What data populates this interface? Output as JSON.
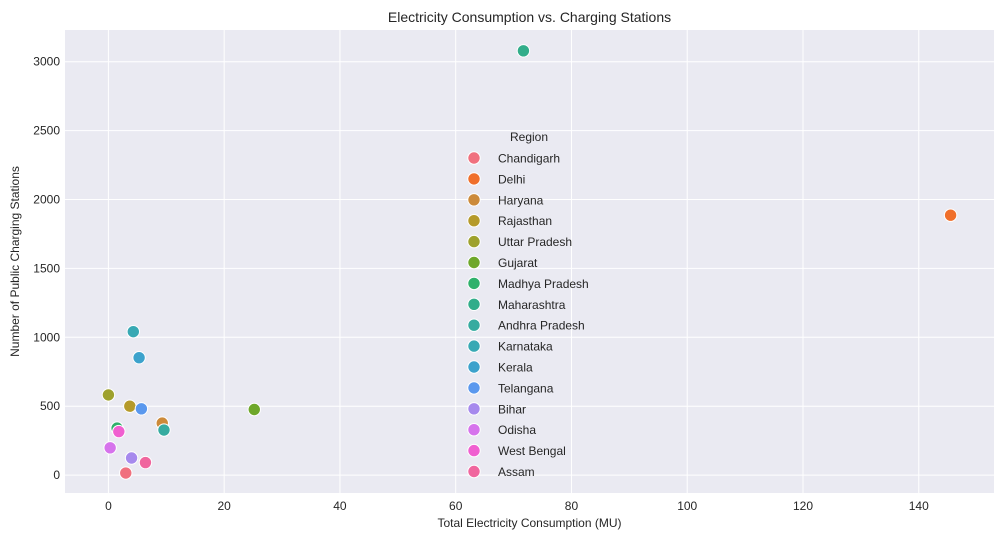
{
  "chart_data": {
    "type": "scatter",
    "title": "Electricity Consumption vs. Charging Stations",
    "xlabel": "Total Electricity Consumption (MU)",
    "ylabel": "Number of Public Charging Stations",
    "xlim": [
      -7.5,
      153
    ],
    "ylim": [
      -130,
      3230
    ],
    "xticks": [
      0,
      20,
      40,
      60,
      80,
      100,
      120,
      140
    ],
    "yticks": [
      0,
      500,
      1000,
      1500,
      2000,
      2500,
      3000
    ],
    "grid": true,
    "legend": {
      "title": "Region",
      "placement": "center"
    },
    "series": [
      {
        "name": "Chandigarh",
        "color": "#f0707e",
        "points": [
          {
            "x": 3.0,
            "y": 15
          }
        ]
      },
      {
        "name": "Delhi",
        "color": "#f06f2b",
        "points": [
          {
            "x": 145.5,
            "y": 1886
          }
        ]
      },
      {
        "name": "Haryana",
        "color": "#cc8a3a",
        "points": [
          {
            "x": 9.3,
            "y": 377
          }
        ]
      },
      {
        "name": "Rajasthan",
        "color": "#b59a2a",
        "points": [
          {
            "x": 3.7,
            "y": 500
          }
        ]
      },
      {
        "name": "Uttar Pradesh",
        "color": "#9ea12d",
        "points": [
          {
            "x": 0.0,
            "y": 582
          }
        ]
      },
      {
        "name": "Gujarat",
        "color": "#6ea72a",
        "points": [
          {
            "x": 25.2,
            "y": 476
          }
        ]
      },
      {
        "name": "Madhya Pradesh",
        "color": "#2fb16b",
        "points": [
          {
            "x": 1.5,
            "y": 341
          }
        ]
      },
      {
        "name": "Maharashtra",
        "color": "#32ad8a",
        "points": [
          {
            "x": 71.7,
            "y": 3079
          }
        ]
      },
      {
        "name": "Andhra Pradesh",
        "color": "#36aba0",
        "points": [
          {
            "x": 9.6,
            "y": 327
          }
        ]
      },
      {
        "name": "Karnataka",
        "color": "#38a9b4",
        "points": [
          {
            "x": 4.3,
            "y": 1041
          }
        ]
      },
      {
        "name": "Kerala",
        "color": "#3ca2cc",
        "points": [
          {
            "x": 5.3,
            "y": 852
          }
        ]
      },
      {
        "name": "Telangana",
        "color": "#5a98ee",
        "points": [
          {
            "x": 5.7,
            "y": 481
          }
        ]
      },
      {
        "name": "Bihar",
        "color": "#a689ed",
        "points": [
          {
            "x": 4.0,
            "y": 124
          }
        ]
      },
      {
        "name": "Odisha",
        "color": "#d673ec",
        "points": [
          {
            "x": 0.3,
            "y": 198
          }
        ]
      },
      {
        "name": "West Bengal",
        "color": "#f05fd0",
        "points": [
          {
            "x": 1.8,
            "y": 316
          }
        ]
      },
      {
        "name": "Assam",
        "color": "#f0669e",
        "points": [
          {
            "x": 6.4,
            "y": 91
          }
        ]
      }
    ]
  }
}
